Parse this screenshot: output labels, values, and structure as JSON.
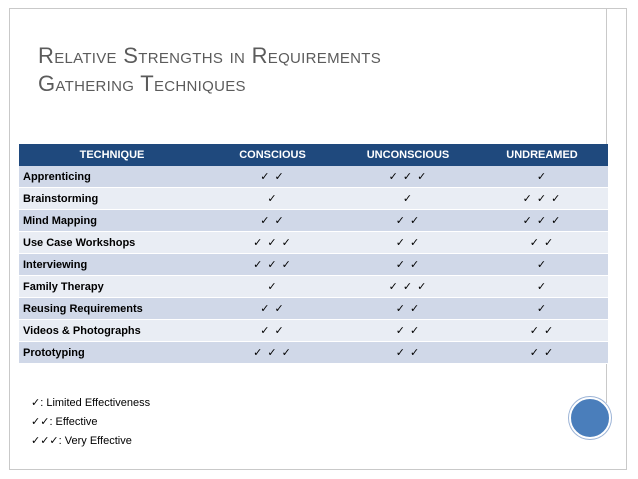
{
  "slide": {
    "title_line1": "Relative Strengths in Requirements",
    "title_line2": "Gathering Techniques"
  },
  "table": {
    "headers": [
      "TECHNIQUE",
      "CONSCIOUS",
      "UNCONSCIOUS",
      "UNDREAMED"
    ],
    "rows": [
      {
        "technique": "Apprenticing",
        "conscious": "✓ ✓",
        "unconscious": "✓ ✓ ✓",
        "undreamed": "✓"
      },
      {
        "technique": "Brainstorming",
        "conscious": "✓",
        "unconscious": "✓",
        "undreamed": "✓ ✓ ✓"
      },
      {
        "technique": "Mind Mapping",
        "conscious": "✓ ✓",
        "unconscious": "✓ ✓",
        "undreamed": "✓ ✓ ✓"
      },
      {
        "technique": "Use Case Workshops",
        "conscious": "✓ ✓ ✓",
        "unconscious": "✓ ✓",
        "undreamed": "✓ ✓"
      },
      {
        "technique": "Interviewing",
        "conscious": "✓ ✓ ✓",
        "unconscious": "✓ ✓",
        "undreamed": "✓"
      },
      {
        "technique": "Family Therapy",
        "conscious": "✓",
        "unconscious": "✓ ✓ ✓",
        "undreamed": "✓"
      },
      {
        "technique": "Reusing Requirements",
        "conscious": "✓ ✓",
        "unconscious": "✓ ✓",
        "undreamed": "✓"
      },
      {
        "technique": "Videos & Photographs",
        "conscious": "✓ ✓",
        "unconscious": "✓ ✓",
        "undreamed": "✓ ✓"
      },
      {
        "technique": "Prototyping",
        "conscious": "✓ ✓ ✓",
        "unconscious": "✓ ✓",
        "undreamed": "✓ ✓"
      }
    ]
  },
  "legend": [
    {
      "marks": "✓",
      "label": ": Limited Effectiveness"
    },
    {
      "marks": "✓✓",
      "label": ": Effective"
    },
    {
      "marks": "✓✓✓",
      "label": ": Very Effective"
    }
  ],
  "colors": {
    "header_bg": "#1f497d",
    "row_odd": "#d0d8e8",
    "row_even": "#e9edf4",
    "accent_circle": "#4a7ebb",
    "title": "#5b5b5b"
  }
}
